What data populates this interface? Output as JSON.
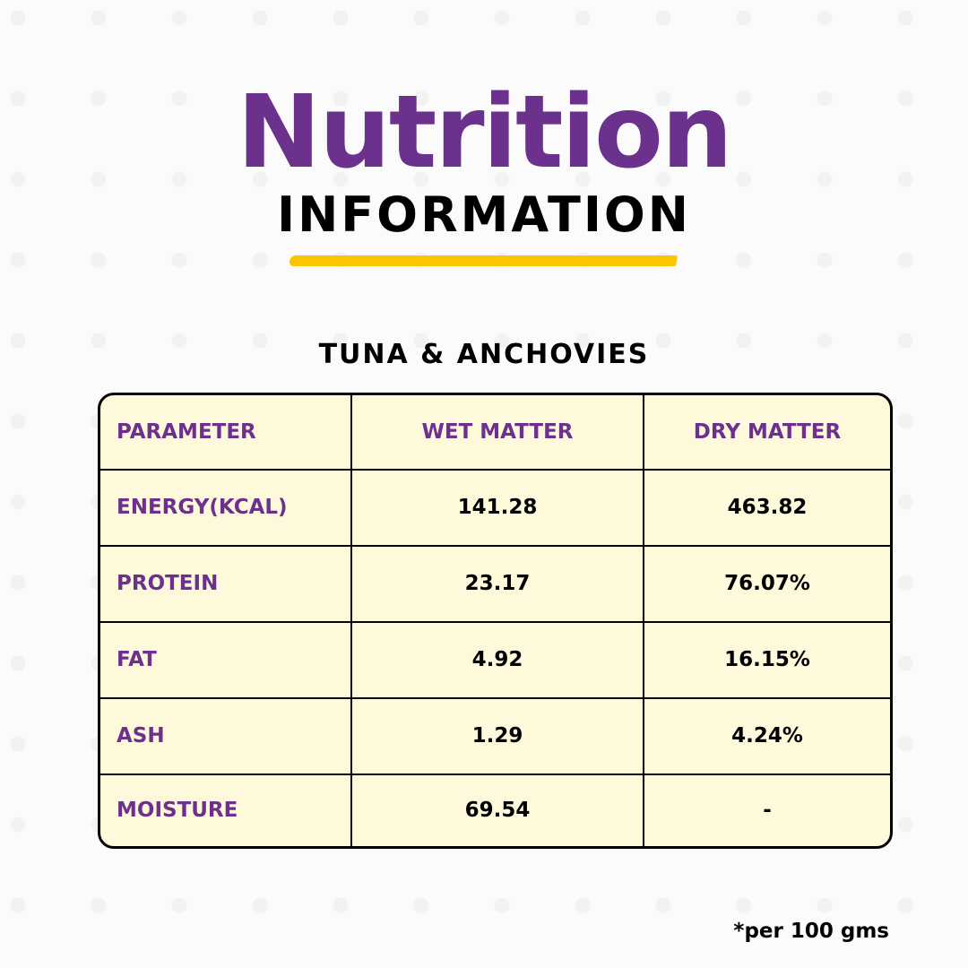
{
  "title": "Nutrition",
  "subtitle": "INFORMATION",
  "product": "TUNA & ANCHOVIES",
  "table": {
    "headers": [
      "PARAMETER",
      "WET MATTER",
      "DRY MATTER"
    ],
    "rows": [
      [
        "ENERGY(KCAL)",
        "141.28",
        "463.82"
      ],
      [
        "PROTEIN",
        "23.17",
        "76.07%"
      ],
      [
        "FAT",
        "4.92",
        "16.15%"
      ],
      [
        "ASH",
        "1.29",
        "4.24%"
      ],
      [
        "MOISTURE",
        "69.54",
        "-"
      ]
    ]
  },
  "footnote": "*per 100 gms",
  "colors": {
    "accent": "#6c318c",
    "highlight": "#ffc400",
    "table_bg": "#fff9dc"
  }
}
